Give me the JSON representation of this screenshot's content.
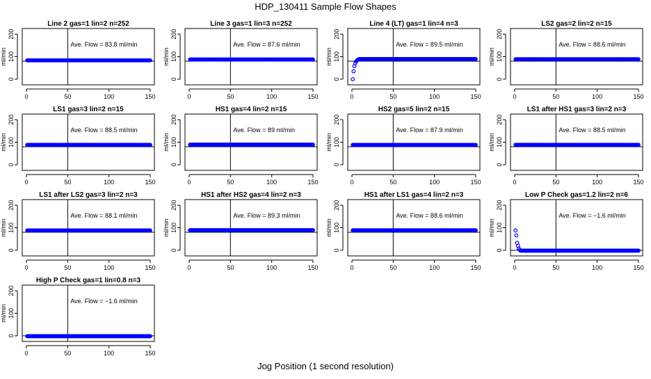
{
  "page": {
    "title": "HDP_130411  Sample Flow Shapes",
    "xlabel": "Jog Position (1 second resolution)"
  },
  "chart_data": [
    {
      "type": "scatter",
      "title": "Line 2 gas=1 lin=2 n=252",
      "annotation": "Ave. Flow =  83.8  ml/min",
      "ylabel": "ml/min",
      "xlim": [
        0,
        150
      ],
      "ylim": [
        -25,
        225
      ],
      "x_ticks": [
        0,
        50,
        100,
        150
      ],
      "y_ticks": [
        0,
        100,
        200
      ],
      "vline_x": 50,
      "hline_y": 80,
      "marker_color": "#0000ff",
      "shape": {
        "start_x": 1,
        "end_x": 150,
        "start_y": 83.8,
        "plateau": 83.8,
        "rise_points": []
      }
    },
    {
      "type": "scatter",
      "title": "Line 3 gas=1 lin=3 n=252",
      "annotation": "Ave. Flow =  87.6  ml/min",
      "ylabel": "ml/min",
      "xlim": [
        0,
        150
      ],
      "ylim": [
        -25,
        225
      ],
      "x_ticks": [
        0,
        50,
        100,
        150
      ],
      "y_ticks": [
        0,
        100,
        200
      ],
      "vline_x": 50,
      "hline_y": 80,
      "marker_color": "#0000ff",
      "shape": {
        "start_x": 1,
        "end_x": 150,
        "plateau": 87.6,
        "rise_points": []
      }
    },
    {
      "type": "scatter",
      "title": "Line 4 (LT) gas=1 lin=4 n=3",
      "annotation": "Ave. Flow =  89.5  ml/min",
      "ylabel": "ml/min",
      "xlim": [
        0,
        150
      ],
      "ylim": [
        -25,
        225
      ],
      "x_ticks": [
        0,
        50,
        100,
        150
      ],
      "y_ticks": [
        0,
        100,
        200
      ],
      "vline_x": 50,
      "hline_y": 80,
      "marker_color": "#0000ff",
      "shape": {
        "start_x": 9,
        "end_x": 150,
        "plateau": 89.5,
        "rise_points": [
          [
            1,
            0
          ],
          [
            2,
            35
          ],
          [
            3,
            58
          ],
          [
            4,
            70
          ],
          [
            5,
            78
          ],
          [
            6,
            83
          ],
          [
            7,
            86
          ],
          [
            8,
            88
          ]
        ]
      }
    },
    {
      "type": "scatter",
      "title": "LS2 gas=2 lin=2 n=15",
      "annotation": "Ave. Flow =  88.6  ml/min",
      "ylabel": "ml/min",
      "xlim": [
        0,
        150
      ],
      "ylim": [
        -25,
        225
      ],
      "x_ticks": [
        0,
        50,
        100,
        150
      ],
      "y_ticks": [
        0,
        100,
        200
      ],
      "vline_x": 50,
      "hline_y": 80,
      "marker_color": "#0000ff",
      "shape": {
        "start_x": 1,
        "end_x": 150,
        "plateau": 88.6,
        "rise_points": []
      }
    },
    {
      "type": "scatter",
      "title": "LS1 gas=3 lin=2 n=15",
      "annotation": "Ave. Flow =  88.5  ml/min",
      "ylabel": "ml/min",
      "xlim": [
        0,
        150
      ],
      "ylim": [
        -25,
        225
      ],
      "x_ticks": [
        0,
        50,
        100,
        150
      ],
      "y_ticks": [
        0,
        100,
        200
      ],
      "vline_x": 50,
      "hline_y": 80,
      "marker_color": "#0000ff",
      "shape": {
        "start_x": 1,
        "end_x": 150,
        "plateau": 88.5,
        "rise_points": []
      }
    },
    {
      "type": "scatter",
      "title": "HS1 gas=4 lin=2 n=15",
      "annotation": "Ave. Flow =  89  ml/min",
      "ylabel": "ml/min",
      "xlim": [
        0,
        150
      ],
      "ylim": [
        -25,
        225
      ],
      "x_ticks": [
        0,
        50,
        100,
        150
      ],
      "y_ticks": [
        0,
        100,
        200
      ],
      "vline_x": 50,
      "hline_y": 80,
      "marker_color": "#0000ff",
      "shape": {
        "start_x": 1,
        "end_x": 150,
        "plateau": 89,
        "rise_points": []
      }
    },
    {
      "type": "scatter",
      "title": "HS2 gas=5 lin=2 n=15",
      "annotation": "Ave. Flow =  87.9  ml/min",
      "ylabel": "ml/min",
      "xlim": [
        0,
        150
      ],
      "ylim": [
        -25,
        225
      ],
      "x_ticks": [
        0,
        50,
        100,
        150
      ],
      "y_ticks": [
        0,
        100,
        200
      ],
      "vline_x": 50,
      "hline_y": 80,
      "marker_color": "#0000ff",
      "shape": {
        "start_x": 1,
        "end_x": 150,
        "plateau": 87.9,
        "rise_points": []
      }
    },
    {
      "type": "scatter",
      "title": "LS1 after HS1 gas=3 lin=2 n=3",
      "annotation": "Ave. Flow =  88.5  ml/min",
      "ylabel": "ml/min",
      "xlim": [
        0,
        150
      ],
      "ylim": [
        -25,
        225
      ],
      "x_ticks": [
        0,
        50,
        100,
        150
      ],
      "y_ticks": [
        0,
        100,
        200
      ],
      "vline_x": 50,
      "hline_y": 80,
      "marker_color": "#0000ff",
      "shape": {
        "start_x": 1,
        "end_x": 150,
        "plateau": 88.5,
        "rise_points": []
      }
    },
    {
      "type": "scatter",
      "title": "LS1 after LS2 gas=3 lin=2 n=3",
      "annotation": "Ave. Flow =  88.1  ml/min",
      "ylabel": "ml/min",
      "xlim": [
        0,
        150
      ],
      "ylim": [
        -25,
        225
      ],
      "x_ticks": [
        0,
        50,
        100,
        150
      ],
      "y_ticks": [
        0,
        100,
        200
      ],
      "vline_x": 50,
      "hline_y": 80,
      "marker_color": "#0000ff",
      "shape": {
        "start_x": 1,
        "end_x": 150,
        "plateau": 88.1,
        "rise_points": []
      }
    },
    {
      "type": "scatter",
      "title": "HS1 after HS2 gas=4 lin=2 n=3",
      "annotation": "Ave. Flow =  89.3  ml/min",
      "ylabel": "ml/min",
      "xlim": [
        0,
        150
      ],
      "ylim": [
        -25,
        225
      ],
      "x_ticks": [
        0,
        50,
        100,
        150
      ],
      "y_ticks": [
        0,
        100,
        200
      ],
      "vline_x": 50,
      "hline_y": 80,
      "marker_color": "#0000ff",
      "shape": {
        "start_x": 1,
        "end_x": 150,
        "plateau": 89.3,
        "rise_points": []
      }
    },
    {
      "type": "scatter",
      "title": "HS1 after LS1 gas=4 lin=2 n=3",
      "annotation": "Ave. Flow =  88.6  ml/min",
      "ylabel": "ml/min",
      "xlim": [
        0,
        150
      ],
      "ylim": [
        -25,
        225
      ],
      "x_ticks": [
        0,
        50,
        100,
        150
      ],
      "y_ticks": [
        0,
        100,
        200
      ],
      "vline_x": 50,
      "hline_y": 80,
      "marker_color": "#0000ff",
      "shape": {
        "start_x": 1,
        "end_x": 150,
        "plateau": 88.6,
        "rise_points": []
      }
    },
    {
      "type": "scatter",
      "title": "Low P Check gas=1.2 lin=2 n=6",
      "annotation": "Ave. Flow =  −1.6  ml/min",
      "ylabel": "ml/min",
      "xlim": [
        0,
        150
      ],
      "ylim": [
        -25,
        225
      ],
      "x_ticks": [
        0,
        50,
        100,
        150
      ],
      "y_ticks": [
        0,
        100,
        200
      ],
      "vline_x": 50,
      "hline_y": 0,
      "marker_color": "#0000ff",
      "shape": {
        "start_x": 7,
        "end_x": 150,
        "plateau": -1.6,
        "rise_points": [
          [
            1,
            88
          ],
          [
            2,
            66
          ],
          [
            3,
            33
          ],
          [
            4,
            20
          ],
          [
            5,
            8
          ],
          [
            6,
            2
          ]
        ]
      }
    },
    {
      "type": "scatter",
      "title": "High P Check gas=1 lin=0.8 n=3",
      "annotation": "Ave. Flow =  −1.6  ml/min",
      "ylabel": "ml/min",
      "xlim": [
        0,
        150
      ],
      "ylim": [
        -25,
        225
      ],
      "x_ticks": [
        0,
        50,
        100,
        150
      ],
      "y_ticks": [
        0,
        100,
        200
      ],
      "vline_x": 50,
      "hline_y": 0,
      "marker_color": "#0000ff",
      "shape": {
        "start_x": 1,
        "end_x": 150,
        "plateau": -1.6,
        "rise_points": []
      }
    }
  ]
}
